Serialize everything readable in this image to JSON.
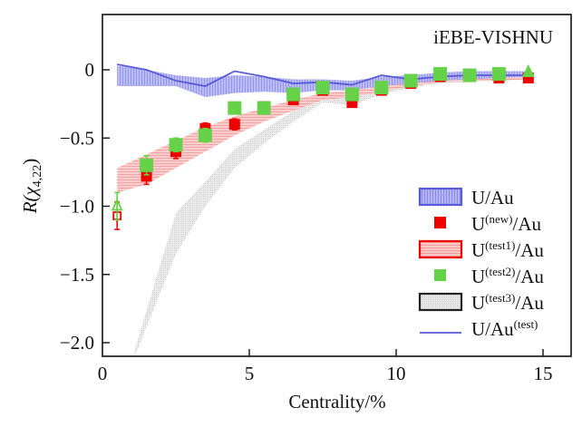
{
  "chart_data": {
    "type": "line",
    "title": "",
    "annotation": "iEBE-VISHNU",
    "xlabel": "Centrality/%",
    "ylabel_main": "R(",
    "ylabel_symbol": "χ",
    "ylabel_sub": "4,22",
    "ylabel_close": ")",
    "xlim": [
      0,
      16
    ],
    "ylim": [
      -2.1,
      0.4
    ],
    "xticks": [
      0,
      5,
      10,
      15
    ],
    "xtick_labels": [
      "0",
      "5",
      "10",
      "15"
    ],
    "yticks": [
      0,
      -0.5,
      -1.0,
      -1.5,
      -2.0
    ],
    "ytick_labels": [
      "0",
      "−0.5",
      "−1.0",
      "−1.5",
      "−2.0"
    ],
    "grid": false,
    "legend_position": "bottom-right",
    "x": [
      0.5,
      1.5,
      2.5,
      3.5,
      4.5,
      5.5,
      6.5,
      7.5,
      8.5,
      9.5,
      10.5,
      11.5,
      12.5,
      13.5,
      14.5
    ],
    "series": [
      {
        "name": "U/Au",
        "label_main": "U/Au",
        "label_sup": "",
        "label_tail": "",
        "kind": "band",
        "color": "#5a5ad6",
        "fill": "#9d9df0",
        "upper": [
          0.03,
          0.0,
          -0.04,
          -0.06,
          -0.04,
          -0.05,
          -0.07,
          -0.07,
          -0.08,
          -0.05,
          -0.04,
          -0.02,
          -0.01,
          -0.01,
          -0.01
        ],
        "lower": [
          -0.12,
          -0.12,
          -0.12,
          -0.2,
          -0.17,
          -0.16,
          -0.17,
          -0.15,
          -0.15,
          -0.12,
          -0.1,
          -0.08,
          -0.07,
          -0.06,
          -0.05
        ]
      },
      {
        "name": "U(new)/Au",
        "label_main": "U",
        "label_sup": "(new)",
        "label_tail": "/Au",
        "kind": "points",
        "color": "#ee0000",
        "values": [
          -1.07,
          -0.78,
          -0.6,
          -0.43,
          -0.4,
          -0.27,
          -0.22,
          -0.15,
          -0.24,
          -0.15,
          -0.1,
          -0.05,
          -0.05,
          -0.06,
          -0.06
        ],
        "errors": [
          0.1,
          0.06,
          0.05,
          0.04,
          0.04,
          0.03,
          0.03,
          0.02,
          0.03,
          0.02,
          0.02,
          0.01,
          0.01,
          0.01,
          0.01
        ]
      },
      {
        "name": "U(test1)/Au",
        "label_main": "U",
        "label_sup": "(test1)",
        "label_tail": "/Au",
        "kind": "band",
        "color": "#ee0000",
        "fill": "#f6a8a8",
        "upper": [
          -0.72,
          -0.62,
          -0.52,
          -0.42,
          -0.34,
          -0.28,
          -0.22,
          -0.17,
          -0.15,
          -0.12,
          -0.09,
          -0.06,
          -0.05,
          -0.05,
          -0.04
        ],
        "lower": [
          -0.9,
          -0.84,
          -0.72,
          -0.6,
          -0.48,
          -0.38,
          -0.3,
          -0.22,
          -0.2,
          -0.16,
          -0.12,
          -0.09,
          -0.08,
          -0.08,
          -0.07
        ]
      },
      {
        "name": "U(test2)/Au",
        "label_main": "U",
        "label_sup": "(test2)",
        "label_tail": "/Au",
        "kind": "points",
        "color": "#66d24a",
        "values": [
          -1.0,
          -0.7,
          -0.55,
          -0.48,
          -0.28,
          -0.28,
          -0.18,
          -0.13,
          -0.18,
          -0.13,
          -0.08,
          -0.03,
          -0.04,
          -0.03,
          -0.02
        ],
        "errors": [
          0.1,
          0.07,
          0.05,
          0.05,
          0.04,
          0.04,
          0.03,
          0.02,
          0.03,
          0.02,
          0.02,
          0.01,
          0.01,
          0.01,
          0.01
        ]
      },
      {
        "name": "U(test3)/Au",
        "label_main": "U",
        "label_sup": "(test3)",
        "label_tail": "/Au",
        "kind": "band",
        "color": "#222222",
        "fill": "#d8d8d8",
        "upper": [
          null,
          -2.05,
          -1.05,
          -0.82,
          -0.58,
          -0.44,
          -0.3,
          -0.17,
          -0.2,
          -0.14,
          -0.1,
          -0.07,
          -0.06,
          -0.06,
          -0.05
        ],
        "lower": [
          null,
          -2.1,
          -1.35,
          -1.0,
          -0.72,
          -0.54,
          -0.38,
          -0.24,
          -0.26,
          -0.18,
          -0.13,
          -0.1,
          -0.09,
          -0.08,
          -0.07
        ],
        "x_start": 1.1
      },
      {
        "name": "U/Au(test)",
        "label_main": "U/Au",
        "label_sup": "(test)",
        "label_tail": "",
        "kind": "line",
        "color": "#5a5ad6",
        "values": [
          0.04,
          0.0,
          -0.08,
          -0.12,
          -0.01,
          -0.05,
          -0.1,
          -0.09,
          -0.11,
          -0.04,
          -0.07,
          -0.05,
          -0.04,
          -0.04,
          -0.04
        ]
      }
    ]
  }
}
